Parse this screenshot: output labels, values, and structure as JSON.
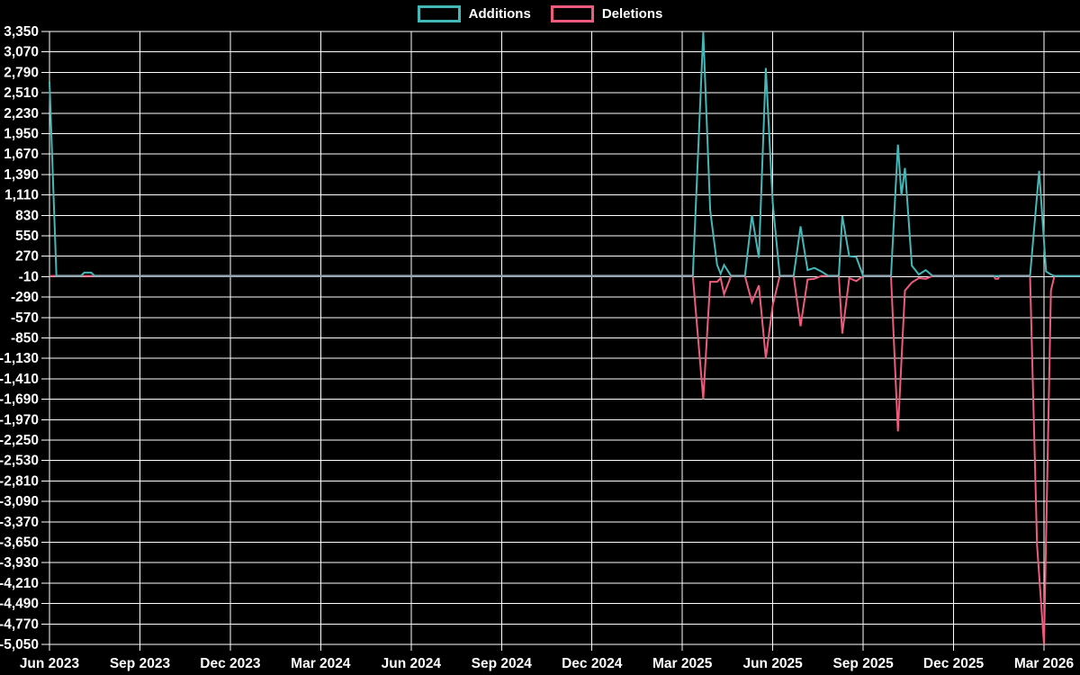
{
  "legend": {
    "items": [
      {
        "label": "Additions"
      },
      {
        "label": "Deletions"
      }
    ]
  },
  "chart_data": {
    "type": "line",
    "title": "",
    "background_color": "#000000",
    "grid_color": "#ffffff",
    "text_color": "#ffffff",
    "baseline_overlap_color": "#8fa4ae",
    "x_axis": {
      "tick_labels": [
        "Jun 2023",
        "Sep 2023",
        "Dec 2023",
        "Mar 2024",
        "Jun 2024",
        "Sep 2024",
        "Dec 2024",
        "Mar 2025",
        "Jun 2025",
        "Sep 2025",
        "Dec 2025",
        "Mar 2026"
      ],
      "unit": "weeks since Jun 2023",
      "weeks_per_quarter": 13,
      "total_weeks": 148.2
    },
    "y_axis": {
      "min": -5050,
      "max": 3350,
      "step": 280,
      "tick_values": [
        3350,
        3070,
        2790,
        2510,
        2230,
        1950,
        1670,
        1390,
        1110,
        830,
        550,
        270,
        -10,
        -290,
        -570,
        -850,
        -1130,
        -1410,
        -1690,
        -1970,
        -2250,
        -2530,
        -2810,
        -3090,
        -3370,
        -3650,
        -3930,
        -4210,
        -4490,
        -4770,
        -5050
      ]
    },
    "series": [
      {
        "name": "Additions",
        "color": "#44b8b8",
        "points": [
          [
            0,
            2660
          ],
          [
            1,
            0
          ],
          [
            4.5,
            0
          ],
          [
            5,
            45
          ],
          [
            6,
            45
          ],
          [
            6.5,
            0
          ],
          [
            92.5,
            0
          ],
          [
            94,
            3340
          ],
          [
            95,
            900
          ],
          [
            96,
            150
          ],
          [
            96.5,
            30
          ],
          [
            97,
            150
          ],
          [
            98,
            0
          ],
          [
            100,
            0
          ],
          [
            101,
            830
          ],
          [
            102,
            250
          ],
          [
            103,
            2850
          ],
          [
            104,
            1000
          ],
          [
            105,
            0
          ],
          [
            107,
            0
          ],
          [
            108,
            680
          ],
          [
            109,
            80
          ],
          [
            110,
            110
          ],
          [
            111,
            60
          ],
          [
            112,
            0
          ],
          [
            113.5,
            0
          ],
          [
            114,
            820
          ],
          [
            115,
            270
          ],
          [
            116,
            260
          ],
          [
            117,
            0
          ],
          [
            121,
            0
          ],
          [
            122,
            1800
          ],
          [
            122.5,
            1100
          ],
          [
            123,
            1480
          ],
          [
            124,
            140
          ],
          [
            125,
            20
          ],
          [
            126,
            80
          ],
          [
            127,
            0
          ],
          [
            141,
            0
          ],
          [
            142.3,
            1440
          ],
          [
            143.3,
            60
          ],
          [
            144,
            20
          ],
          [
            144.5,
            0
          ],
          [
            148.2,
            0
          ]
        ]
      },
      {
        "name": "Deletions",
        "color": "#ef5b7c",
        "points": [
          [
            0,
            0
          ],
          [
            92.5,
            0
          ],
          [
            94,
            -1690
          ],
          [
            95,
            -80
          ],
          [
            96,
            -80
          ],
          [
            96.5,
            -30
          ],
          [
            97,
            -250
          ],
          [
            98,
            0
          ],
          [
            100,
            0
          ],
          [
            101,
            -360
          ],
          [
            102,
            -130
          ],
          [
            103,
            -1130
          ],
          [
            104,
            -400
          ],
          [
            105,
            0
          ],
          [
            107,
            0
          ],
          [
            108,
            -690
          ],
          [
            109,
            -50
          ],
          [
            110,
            -40
          ],
          [
            111,
            0
          ],
          [
            113.5,
            0
          ],
          [
            114,
            -790
          ],
          [
            115,
            -30
          ],
          [
            116,
            -70
          ],
          [
            117,
            0
          ],
          [
            121,
            0
          ],
          [
            122,
            -2130
          ],
          [
            123,
            -200
          ],
          [
            124,
            -90
          ],
          [
            125,
            -30
          ],
          [
            126,
            -40
          ],
          [
            127,
            0
          ],
          [
            135.8,
            0
          ],
          [
            136,
            -40
          ],
          [
            136.4,
            -40
          ],
          [
            136.6,
            0
          ],
          [
            141,
            0
          ],
          [
            142,
            -3690
          ],
          [
            143,
            -5050
          ],
          [
            144,
            -200
          ],
          [
            144.5,
            0
          ],
          [
            148.2,
            0
          ]
        ]
      }
    ]
  }
}
